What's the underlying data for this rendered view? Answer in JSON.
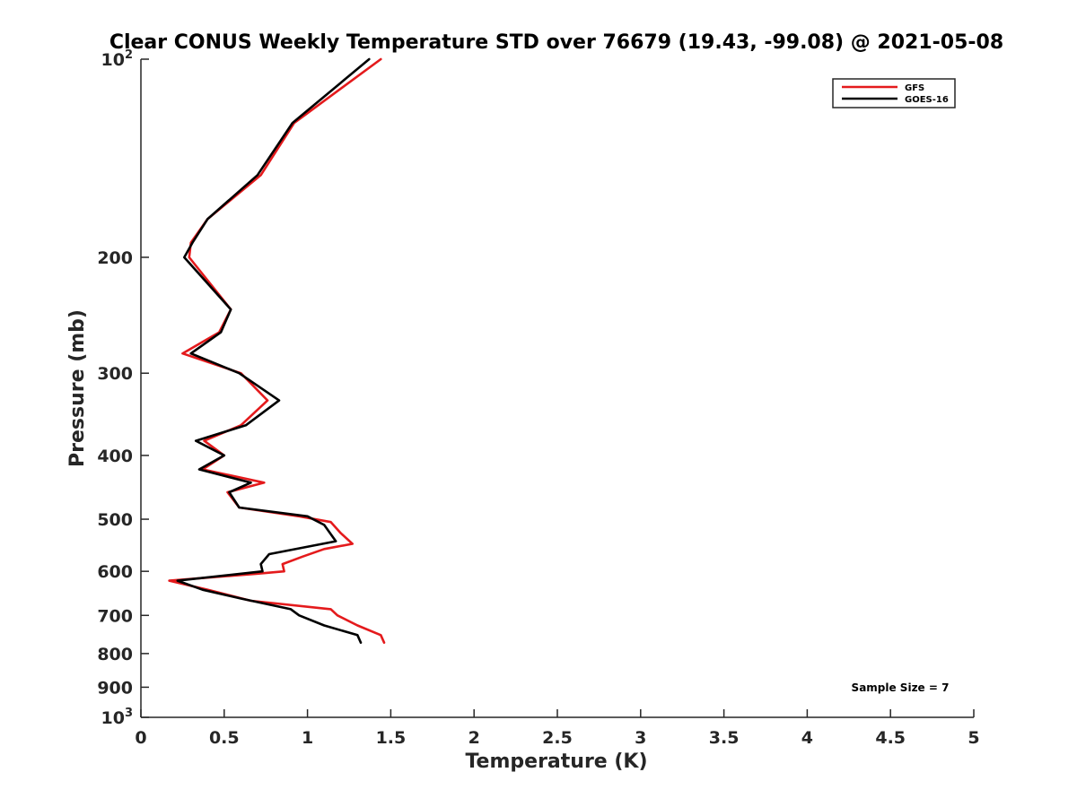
{
  "chart_data": {
    "type": "line",
    "title": "Clear CONUS Weekly Temperature STD over 76679 (19.43, -99.08) @ 2021-05-08",
    "xlabel": "Temperature (K)",
    "ylabel": "Pressure (mb)",
    "xlim": [
      0,
      5
    ],
    "ylim": [
      100,
      1000
    ],
    "y_scale": "log",
    "y_reversed": true,
    "grid": false,
    "legend_position": "top-right",
    "x_ticks": [
      "0",
      "0.5",
      "1",
      "1.5",
      "2",
      "2.5",
      "3",
      "3.5",
      "4",
      "4.5",
      "5"
    ],
    "y_ticks": [
      {
        "value": 100,
        "base": "10",
        "exp": "2"
      },
      {
        "value": 200,
        "label": "200"
      },
      {
        "value": 300,
        "label": "300"
      },
      {
        "value": 400,
        "label": "400"
      },
      {
        "value": 500,
        "label": "500"
      },
      {
        "value": 600,
        "label": "600"
      },
      {
        "value": 700,
        "label": "700"
      },
      {
        "value": 800,
        "label": "800"
      },
      {
        "value": 900,
        "label": "900"
      },
      {
        "value": 1000,
        "base": "10",
        "exp": "3"
      }
    ],
    "annotation": "Sample Size = 7",
    "series": [
      {
        "name": "GFS",
        "color": "#e41a1c",
        "points": [
          [
            1.44,
            100
          ],
          [
            0.92,
            125
          ],
          [
            0.72,
            150
          ],
          [
            0.4,
            175
          ],
          [
            0.3,
            190
          ],
          [
            0.29,
            200
          ],
          [
            0.54,
            240
          ],
          [
            0.47,
            260
          ],
          [
            0.25,
            280
          ],
          [
            0.6,
            300
          ],
          [
            0.76,
            330
          ],
          [
            0.6,
            360
          ],
          [
            0.38,
            380
          ],
          [
            0.5,
            400
          ],
          [
            0.37,
            420
          ],
          [
            0.74,
            440
          ],
          [
            0.52,
            455
          ],
          [
            0.59,
            480
          ],
          [
            0.95,
            495
          ],
          [
            1.14,
            505
          ],
          [
            1.2,
            525
          ],
          [
            1.27,
            545
          ],
          [
            1.1,
            555
          ],
          [
            0.97,
            570
          ],
          [
            0.85,
            585
          ],
          [
            0.86,
            600
          ],
          [
            0.7,
            605
          ],
          [
            0.17,
            620
          ],
          [
            0.4,
            640
          ],
          [
            0.66,
            665
          ],
          [
            1.14,
            685
          ],
          [
            1.18,
            700
          ],
          [
            1.3,
            725
          ],
          [
            1.44,
            750
          ],
          [
            1.46,
            770
          ]
        ]
      },
      {
        "name": "GOES-16",
        "color": "#000000",
        "points": [
          [
            1.37,
            100
          ],
          [
            0.91,
            125
          ],
          [
            0.7,
            150
          ],
          [
            0.4,
            175
          ],
          [
            0.31,
            190
          ],
          [
            0.26,
            200
          ],
          [
            0.54,
            240
          ],
          [
            0.48,
            260
          ],
          [
            0.3,
            280
          ],
          [
            0.59,
            300
          ],
          [
            0.83,
            330
          ],
          [
            0.63,
            360
          ],
          [
            0.33,
            380
          ],
          [
            0.5,
            400
          ],
          [
            0.35,
            420
          ],
          [
            0.66,
            440
          ],
          [
            0.53,
            455
          ],
          [
            0.59,
            480
          ],
          [
            1.0,
            495
          ],
          [
            1.1,
            510
          ],
          [
            1.17,
            540
          ],
          [
            0.77,
            565
          ],
          [
            0.72,
            585
          ],
          [
            0.73,
            600
          ],
          [
            0.22,
            620
          ],
          [
            0.37,
            640
          ],
          [
            0.6,
            660
          ],
          [
            0.9,
            685
          ],
          [
            0.95,
            700
          ],
          [
            1.1,
            725
          ],
          [
            1.3,
            750
          ],
          [
            1.32,
            770
          ]
        ]
      }
    ]
  }
}
